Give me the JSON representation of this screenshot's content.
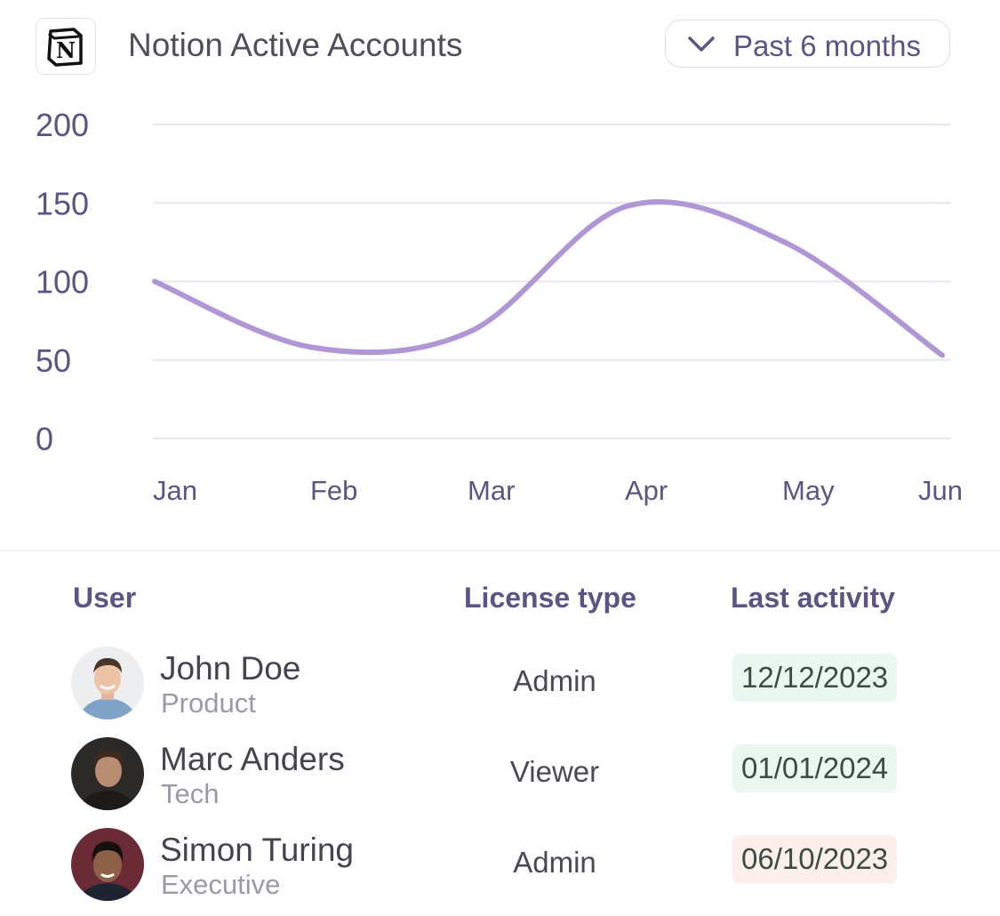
{
  "header": {
    "title": "Notion Active Accounts",
    "logo_icon": "notion-logo",
    "period_label": "Past 6 months",
    "period_icon": "chevron-down-icon"
  },
  "chart_data": {
    "type": "line",
    "title": "",
    "categories": [
      "Jan",
      "Feb",
      "Mar",
      "Apr",
      "May",
      "Jun"
    ],
    "series": [
      {
        "values": [
          100,
          58,
          68,
          148,
          125,
          53
        ],
        "color": "#b196d6"
      }
    ],
    "y_ticks": [
      "200",
      "150",
      "100",
      "50",
      "0"
    ],
    "ylim": [
      0,
      200
    ],
    "grid": true,
    "legend": "none"
  },
  "table": {
    "headers": {
      "user": "User",
      "license": "License type",
      "activity": "Last activity"
    },
    "rows": [
      {
        "name": "John Doe",
        "dept": "Product",
        "license": "Admin",
        "date": "12/12/2023",
        "date_bg": "#eaf7f1"
      },
      {
        "name": "Marc Anders",
        "dept": "Tech",
        "license": "Viewer",
        "date": "01/01/2024",
        "date_bg": "#eaf7f1"
      },
      {
        "name": "Simon Turing",
        "dept": "Executive",
        "license": "Admin",
        "date": "06/10/2023",
        "date_bg": "#fbeeeb"
      }
    ]
  }
}
